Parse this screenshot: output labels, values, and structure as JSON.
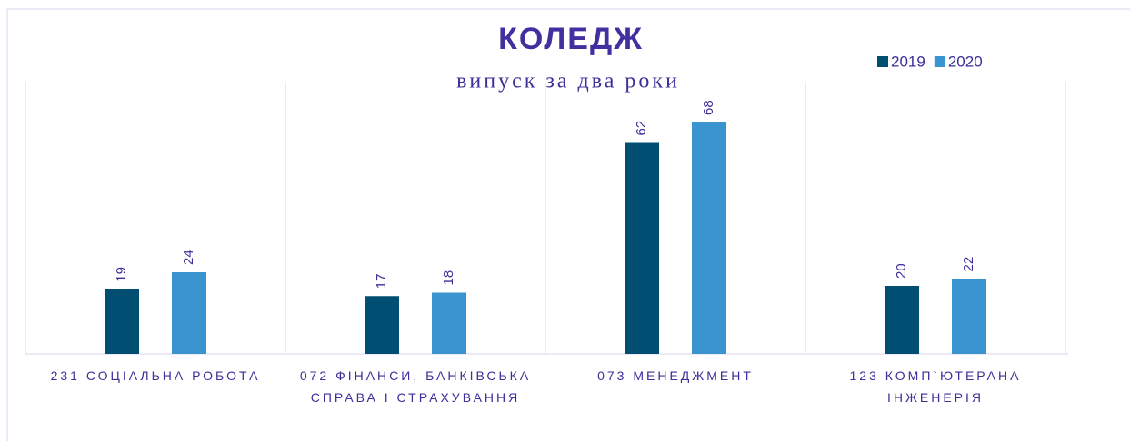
{
  "chart_data": {
    "type": "bar",
    "title": "КОЛЕДЖ",
    "subtitle": "випуск за два роки",
    "categories": [
      "231 СОЦІАЛЬНА РОБОТА",
      "072 ФІНАНСИ, БАНКІВСЬКА СПРАВА І СТРАХУВАННЯ",
      "073 МЕНЕДЖМЕНТ",
      "123 КОМП`ЮТЕРАНА ІНЖЕНЕРІЯ"
    ],
    "series": [
      {
        "name": "2019",
        "color": "#004f73",
        "values": [
          19,
          17,
          62,
          20
        ]
      },
      {
        "name": "2020",
        "color": "#3a94cf",
        "values": [
          24,
          18,
          68,
          22
        ]
      }
    ],
    "ylim": [
      0,
      80
    ],
    "legend": "top-right"
  }
}
